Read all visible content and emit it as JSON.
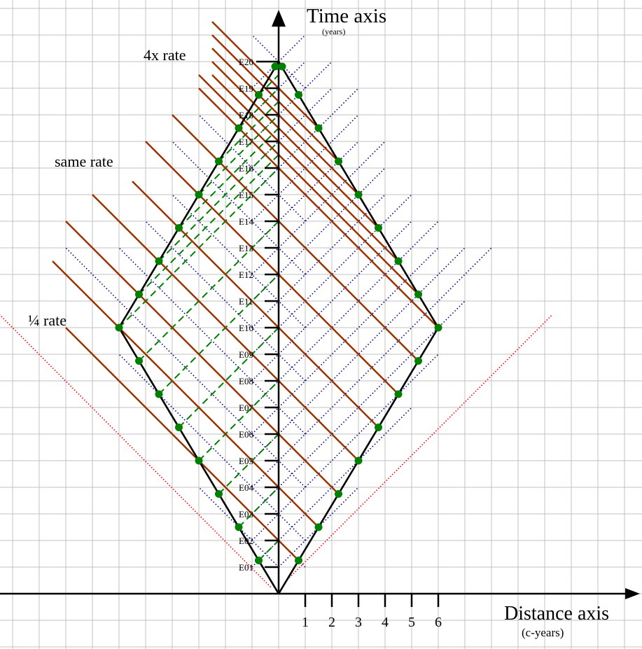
{
  "chart_data": {
    "type": "spacetime-diagram",
    "time_axis": {
      "label": "Time axis",
      "unit": "(years)"
    },
    "distance_axis": {
      "label": "Distance axis",
      "unit": "(c-years)",
      "ticks": [
        "1",
        "2",
        "3",
        "4",
        "5",
        "6"
      ]
    },
    "earth_events": [
      "E01",
      "E02",
      "E03",
      "E04",
      "E05",
      "E06",
      "E07",
      "E08",
      "E09",
      "E10",
      "E11",
      "E12",
      "E13",
      "E14",
      "E15",
      "E16",
      "E17",
      "E18",
      "E19",
      "E20"
    ],
    "annotations": {
      "fast": "4x rate",
      "same": "same rate",
      "slow": "¼ rate"
    },
    "traveler": {
      "speed": 0.6,
      "turnaround": {
        "x": 6,
        "t": 10
      },
      "return": {
        "x": 0,
        "t": 20
      },
      "proper_time_ticks": 16,
      "tick_interval_t": 1.25
    },
    "earth_signal_end_abs_x": {
      "1": 3,
      "2": 5,
      "3": 6,
      "4": 7,
      "5": 8,
      "6": 7,
      "7": 6,
      "8": 6,
      "9": 5,
      "10": 5,
      "11": 4,
      "12": 4,
      "13": 4,
      "14": 3,
      "15": 3,
      "16": 3,
      "17": 2,
      "18": 2,
      "19": 1,
      "20": 1
    },
    "traveler_signals": [
      {
        "sum": 2,
        "start_x": -8
      },
      {
        "sum": 4,
        "start_x": -8.5
      },
      {
        "sum": 6,
        "start_x": -8
      },
      {
        "sum": 8,
        "start_x": -7
      },
      {
        "sum": 10,
        "start_x": -5.5
      },
      {
        "sum": 12,
        "start_x": -5
      },
      {
        "sum": 14,
        "start_x": -4
      },
      {
        "sum": 16,
        "start_x": -3
      },
      {
        "sum": 16.5,
        "start_x": -3
      },
      {
        "sum": 17,
        "start_x": -2.5
      },
      {
        "sum": 17.5,
        "start_x": -2.5
      },
      {
        "sum": 18,
        "start_x": -2.5
      },
      {
        "sum": 18.5,
        "start_x": -2.5
      },
      {
        "sum": 19,
        "start_x": -2.5
      }
    ],
    "light_cone": {
      "left_end": {
        "x": -10.5,
        "t": 10.5
      },
      "right_end": {
        "x": 10.3,
        "t": 10.5
      }
    },
    "colors": {
      "grid": "#c0c0c0",
      "worldline": "#000000",
      "dot": "#008000",
      "green_signal": "#008000",
      "earth_signal": "#000080",
      "traveler_signal": "#993300",
      "light_cone": "#ff0000"
    }
  }
}
